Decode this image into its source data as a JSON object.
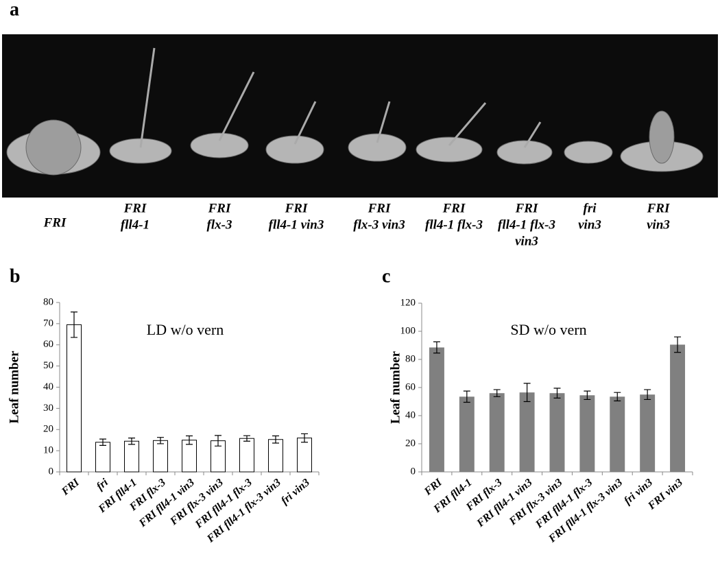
{
  "panel_a": {
    "label": "a",
    "captions": [
      [
        "FRI"
      ],
      [
        "FRI",
        "fll4-1"
      ],
      [
        "FRI",
        "flx-3"
      ],
      [
        "FRI",
        "fll4-1 vin3"
      ],
      [
        "FRI",
        "flx-3 vin3"
      ],
      [
        "FRI",
        "fll4-1 flx-3"
      ],
      [
        "FRI",
        "fll4-1 flx-3",
        "vin3"
      ],
      [
        "fri",
        "vin3"
      ],
      [
        "FRI",
        "vin3"
      ]
    ]
  },
  "chart_data": [
    {
      "type": "bar",
      "panel_label": "b",
      "annotation": "LD w/o vern",
      "ylabel": "Leaf number",
      "categories": [
        "FRI",
        "fri",
        "FRI fll4-1",
        "FRI flx-3",
        "FRI fll4-1 vin3",
        "FRI flx-3 vin3",
        "FRI fll4-1 flx-3",
        "FRI fll4-1 flx-3 vin3",
        "fri vin3"
      ],
      "values": [
        69.5,
        14,
        14.5,
        14.8,
        15,
        14.7,
        15.8,
        15.3,
        16
      ],
      "errors": [
        6,
        1.5,
        1.5,
        1.5,
        2,
        2.5,
        1.3,
        1.7,
        2
      ],
      "color": "#ffffff",
      "ylim": [
        0,
        80
      ],
      "yticks": [
        0,
        10,
        20,
        30,
        40,
        50,
        60,
        70,
        80
      ],
      "grid": false
    },
    {
      "type": "bar",
      "panel_label": "c",
      "annotation": "SD w/o vern",
      "ylabel": "Leaf number",
      "categories": [
        "FRI",
        "FRI fll4-1",
        "FRI flx-3",
        "FRI fll4-1 vin3",
        "FRI flx-3 vin3",
        "FRI fll4-1 flx-3",
        "FRI fll4-1 flx-3 vin3",
        "fri vin3",
        "FRI vin3"
      ],
      "values": [
        88.5,
        53.5,
        56,
        56.5,
        56,
        54.5,
        53.5,
        55,
        90.5
      ],
      "errors": [
        4,
        4,
        2.5,
        6.5,
        3.5,
        3,
        3,
        3.5,
        5.5
      ],
      "color": "#808080",
      "ylim": [
        0,
        120
      ],
      "yticks": [
        0,
        20,
        40,
        60,
        80,
        100,
        120
      ],
      "grid": false
    }
  ]
}
